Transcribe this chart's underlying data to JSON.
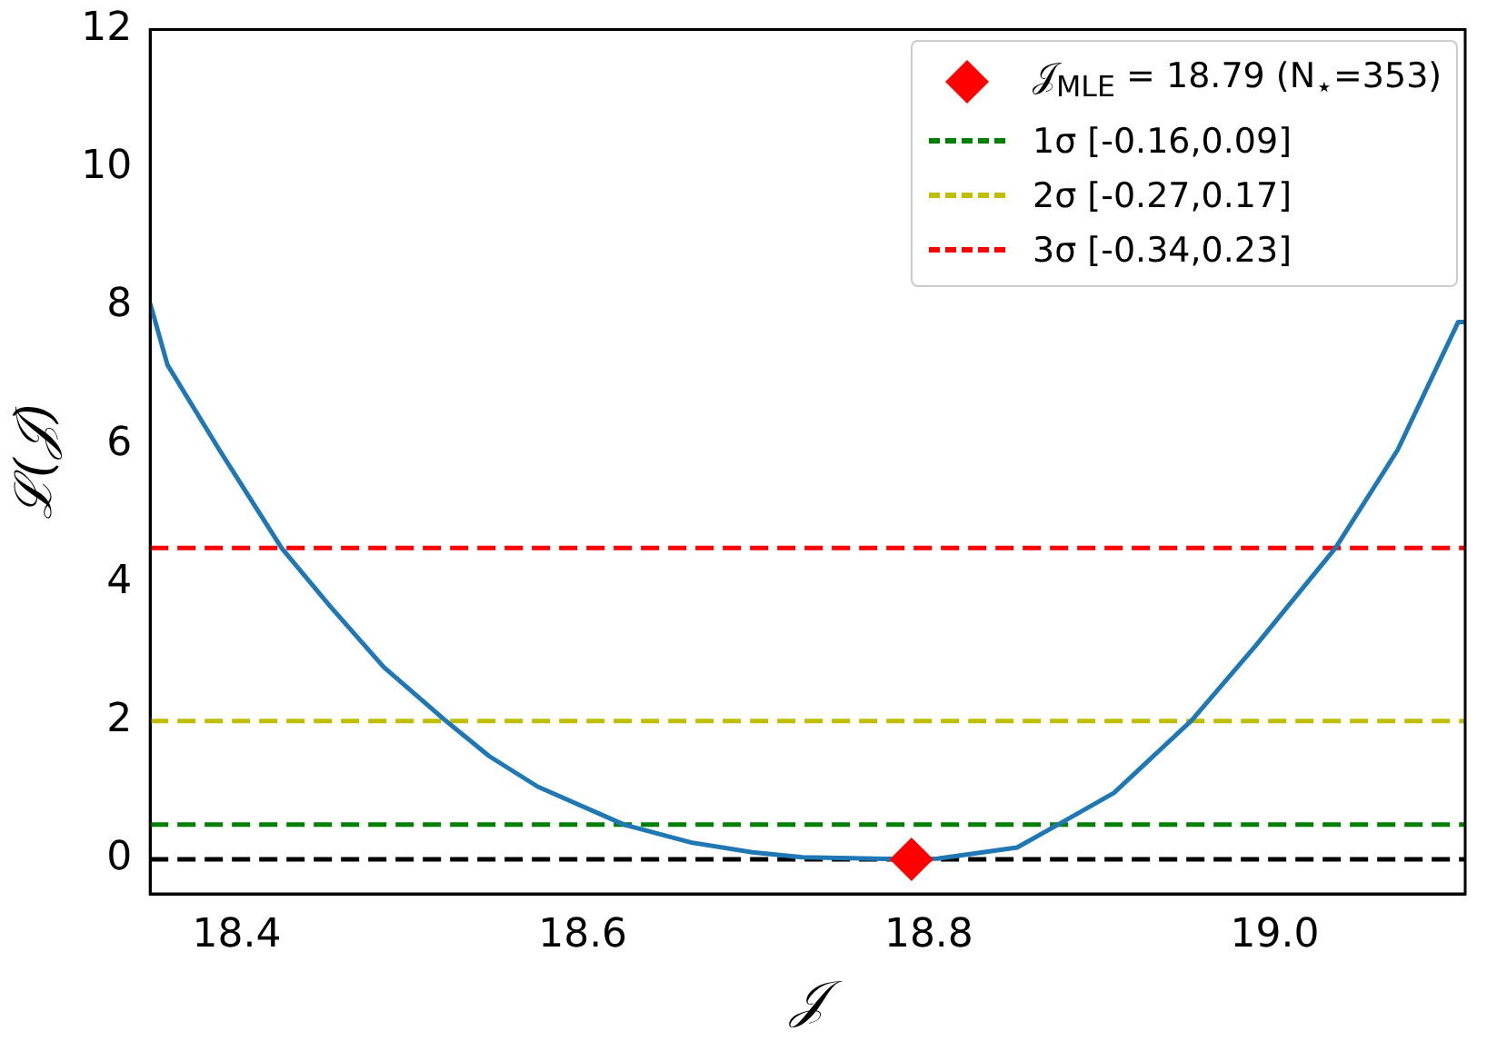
{
  "chart_data": {
    "type": "line",
    "xlabel": "𝒥",
    "ylabel": "ℒ(𝒥)",
    "xlim": [
      18.35,
      19.11
    ],
    "xticks": [
      18.4,
      18.6,
      18.8,
      {
        "value": 19,
        "label": "19.0"
      }
    ],
    "ylim": [
      -0.5,
      12
    ],
    "yticks": [
      0,
      2,
      4,
      6,
      8,
      10,
      12
    ],
    "grid": false,
    "legend": "top right",
    "series": [
      {
        "type": "line",
        "color": "#1f77b4",
        "marker": "none",
        "line_style": "solid",
        "x": [
          18.35,
          18.36,
          18.39,
          18.426,
          18.454,
          18.485,
          18.52,
          18.546,
          18.574,
          18.624,
          18.663,
          18.698,
          18.727,
          18.79,
          18.805,
          18.851,
          18.876,
          18.907,
          18.952,
          18.989,
          19.035,
          19.071,
          19.106,
          19.11
        ],
        "values": [
          8.04,
          7.15,
          5.92,
          4.5,
          3.66,
          2.78,
          2.02,
          1.49,
          1.05,
          0.5,
          0.24,
          0.1,
          0.03,
          0,
          0.01,
          0.17,
          0.52,
          0.96,
          2.01,
          3.09,
          4.5,
          5.92,
          7.77,
          7.77
        ]
      },
      {
        "type": "scatter",
        "name": "𝒥$_{MLE}$ = 18.79 (N$_{⋆}$=353)",
        "color": "#ff0000",
        "marker": "diamond",
        "x": [
          18.79
        ],
        "values": [
          0
        ]
      }
    ],
    "ref_lines": [
      {
        "axis": "y",
        "value": 0,
        "color": "#000000",
        "line_style": "dashed"
      },
      {
        "axis": "y",
        "value": 0.5,
        "label": "1σ [-0.16,0.09]",
        "color": "#008000",
        "line_style": "dashed"
      },
      {
        "axis": "y",
        "value": 2,
        "label": "2σ [-0.27,0.17]",
        "color": "#bfbf00",
        "line_style": "dashed"
      },
      {
        "axis": "y",
        "value": 4.5,
        "label": "3σ [-0.34,0.23]",
        "color": "#ff0000",
        "line_style": "dashed"
      }
    ]
  }
}
